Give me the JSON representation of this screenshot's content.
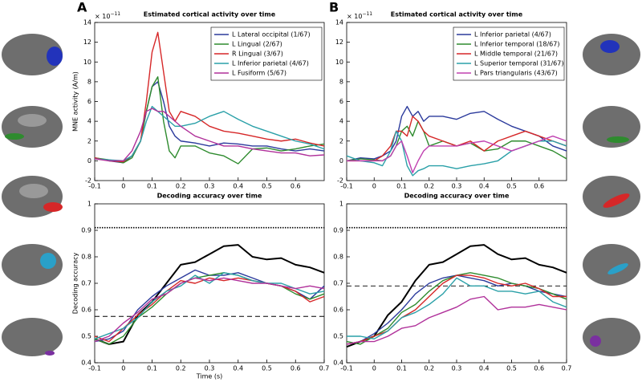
{
  "chart_data": [
    {
      "type": "line",
      "title": "Estimated cortical activity over time",
      "panel_label": "A",
      "offset_label": "× 10",
      "offset_exponent": "−11",
      "ylabel": "MNE activity (A/m)",
      "xlim": [
        -0.1,
        0.7
      ],
      "xticks": [
        -0.1,
        0,
        0.1,
        0.2,
        0.3,
        0.4,
        0.5,
        0.6
      ],
      "ylim": [
        -2,
        14
      ],
      "yticks": [
        -2,
        0,
        2,
        4,
        6,
        8,
        10,
        12,
        14
      ],
      "legend": "upper right",
      "x": [
        -0.1,
        -0.05,
        0,
        0.03,
        0.06,
        0.08,
        0.1,
        0.12,
        0.14,
        0.16,
        0.18,
        0.2,
        0.25,
        0.3,
        0.35,
        0.4,
        0.45,
        0.5,
        0.55,
        0.6,
        0.65,
        0.7
      ],
      "series": [
        {
          "name": "L Lateral occipital (1/67)",
          "color": "#2b3a9c",
          "values": [
            0.3,
            0,
            -0.2,
            0.5,
            2,
            5,
            7.5,
            8,
            6,
            3.5,
            2.5,
            2,
            1.8,
            1.5,
            1.8,
            1.7,
            1.5,
            1.5,
            1.2,
            1,
            1.2,
            1
          ]
        },
        {
          "name": "L Lingual (2/67)",
          "color": "#2e8b2e",
          "values": [
            0.3,
            0.1,
            -0.2,
            0.3,
            2,
            5,
            7.5,
            8.5,
            4,
            1,
            0.3,
            1.5,
            1.5,
            0.8,
            0.5,
            -0.3,
            1.2,
            1.3,
            1,
            1.2,
            1.5,
            1.7
          ]
        },
        {
          "name": "R Lingual (3/67)",
          "color": "#d62728",
          "values": [
            0.3,
            0,
            -0.1,
            0.5,
            2,
            6,
            11,
            13,
            9,
            5,
            4,
            5,
            4.5,
            3.5,
            3,
            2.8,
            2.5,
            2.2,
            2,
            2.2,
            1.8,
            1.5
          ]
        },
        {
          "name": "L Inferior parietal (4/67)",
          "color": "#2aa0a8",
          "values": [
            0.2,
            0.1,
            0,
            0.5,
            2,
            4,
            5.5,
            5,
            4.5,
            4,
            3.5,
            3.5,
            3.8,
            4.5,
            5,
            4.2,
            3.5,
            3,
            2.5,
            2,
            1.7,
            1.2
          ]
        },
        {
          "name": "L Fusiform (5/67)",
          "color": "#b0309a",
          "values": [
            0.2,
            0,
            0,
            1,
            3,
            5,
            5.3,
            5,
            5,
            4.5,
            4,
            3.5,
            2.5,
            2,
            1.5,
            1.5,
            1.2,
            1,
            0.8,
            0.8,
            0.5,
            0.6
          ]
        }
      ]
    },
    {
      "type": "line",
      "title": "Estimated cortical activity over time",
      "panel_label": "B",
      "offset_label": "× 10",
      "offset_exponent": "−11",
      "xlim": [
        -0.1,
        0.7
      ],
      "xticks": [
        -0.1,
        0,
        0.1,
        0.2,
        0.3,
        0.4,
        0.5,
        0.6
      ],
      "ylim": [
        -2,
        14
      ],
      "yticks": [
        -2,
        0,
        2,
        4,
        6,
        8,
        10,
        12,
        14
      ],
      "legend": "upper right",
      "x": [
        -0.1,
        -0.05,
        0,
        0.03,
        0.06,
        0.08,
        0.1,
        0.12,
        0.14,
        0.16,
        0.18,
        0.2,
        0.25,
        0.3,
        0.35,
        0.4,
        0.45,
        0.5,
        0.55,
        0.6,
        0.65,
        0.7
      ],
      "series": [
        {
          "name": "L Inferior parietal (4/67)",
          "color": "#2b3a9c",
          "values": [
            0,
            0.3,
            0.2,
            0.5,
            1,
            2,
            4.5,
            5.5,
            4.5,
            5,
            4,
            4.5,
            4.5,
            4.2,
            4.8,
            5,
            4.2,
            3.5,
            3,
            2.5,
            1.5,
            1
          ]
        },
        {
          "name": "L Inferior temporal (18/67)",
          "color": "#2e8b2e",
          "values": [
            0,
            0.2,
            0.1,
            0,
            0.5,
            1.5,
            3,
            3.5,
            2.5,
            4,
            3,
            1.5,
            2,
            1.5,
            1.8,
            1,
            1.2,
            2,
            2,
            1.5,
            1,
            0.2
          ]
        },
        {
          "name": "L Middle temporal (21/67)",
          "color": "#d62728",
          "values": [
            0,
            0,
            0,
            0.5,
            1.5,
            3,
            3,
            2.5,
            4.5,
            4,
            3,
            2.5,
            2,
            1.5,
            2,
            1,
            2,
            2.5,
            3,
            2.5,
            2,
            1.5
          ]
        },
        {
          "name": "L Superior temporal (31/67)",
          "color": "#2aa0a8",
          "values": [
            0.5,
            0,
            -0.2,
            -0.5,
            1,
            3,
            2,
            -0.5,
            -1.5,
            -1,
            -0.8,
            -0.5,
            -0.5,
            -0.8,
            -0.5,
            -0.3,
            0,
            1,
            1.5,
            2,
            2,
            1.5
          ]
        },
        {
          "name": "L Pars triangularis (43/67)",
          "color": "#c040b0",
          "values": [
            0,
            0,
            0,
            0,
            0.5,
            1.5,
            2,
            0.5,
            -1.2,
            0,
            1,
            1.5,
            1.5,
            1.5,
            1.8,
            2,
            1.5,
            1,
            1.5,
            2,
            2.5,
            2
          ]
        }
      ]
    },
    {
      "type": "line",
      "title": "Decoding accuracy over time",
      "ylabel": "Decoding accuracy",
      "xlabel": "Time (s)",
      "xlim": [
        -0.1,
        0.7
      ],
      "xticks": [
        -0.1,
        0,
        0.1,
        0.2,
        0.3,
        0.4,
        0.5,
        0.6,
        0.7
      ],
      "ylim": [
        0.4,
        1
      ],
      "yticks": [
        0.4,
        0.5,
        0.6,
        0.7,
        0.8,
        0.9,
        1
      ],
      "reference_lines": [
        {
          "value": 0.91,
          "style": "dotted"
        },
        {
          "value": 0.575,
          "style": "dashed"
        }
      ],
      "x": [
        -0.1,
        -0.05,
        0,
        0.05,
        0.1,
        0.15,
        0.2,
        0.25,
        0.3,
        0.35,
        0.4,
        0.45,
        0.5,
        0.55,
        0.6,
        0.65,
        0.7
      ],
      "series": [
        {
          "color": "#000000",
          "values": [
            0.49,
            0.47,
            0.48,
            0.58,
            0.63,
            0.7,
            0.77,
            0.78,
            0.81,
            0.84,
            0.845,
            0.8,
            0.79,
            0.795,
            0.77,
            0.76,
            0.74
          ]
        },
        {
          "color": "#2b3a9c",
          "values": [
            0.48,
            0.49,
            0.52,
            0.6,
            0.65,
            0.69,
            0.72,
            0.75,
            0.73,
            0.73,
            0.74,
            0.72,
            0.7,
            0.69,
            0.67,
            0.64,
            0.69
          ]
        },
        {
          "color": "#2e8b2e",
          "values": [
            0.49,
            0.47,
            0.5,
            0.57,
            0.61,
            0.66,
            0.7,
            0.72,
            0.73,
            0.74,
            0.73,
            0.71,
            0.7,
            0.69,
            0.66,
            0.64,
            0.66
          ]
        },
        {
          "color": "#d62728",
          "values": [
            0.5,
            0.48,
            0.53,
            0.58,
            0.62,
            0.67,
            0.71,
            0.7,
            0.72,
            0.71,
            0.72,
            0.71,
            0.7,
            0.69,
            0.67,
            0.63,
            0.65
          ]
        },
        {
          "color": "#2aa0a8",
          "values": [
            0.49,
            0.51,
            0.53,
            0.57,
            0.63,
            0.67,
            0.69,
            0.73,
            0.7,
            0.74,
            0.73,
            0.71,
            0.7,
            0.7,
            0.68,
            0.66,
            0.67
          ]
        },
        {
          "color": "#b0309a",
          "values": [
            0.48,
            0.5,
            0.55,
            0.59,
            0.64,
            0.66,
            0.7,
            0.72,
            0.71,
            0.72,
            0.71,
            0.7,
            0.7,
            0.69,
            0.68,
            0.69,
            0.68
          ]
        }
      ]
    },
    {
      "type": "line",
      "title": "Decoding accuracy over time",
      "xlim": [
        -0.1,
        0.7
      ],
      "xticks": [
        -0.1,
        0,
        0.1,
        0.2,
        0.3,
        0.4,
        0.5,
        0.6,
        0.7
      ],
      "ylim": [
        0.4,
        1
      ],
      "yticks": [
        0.4,
        0.5,
        0.6,
        0.7,
        0.8,
        0.9,
        1
      ],
      "reference_lines": [
        {
          "value": 0.91,
          "style": "dotted"
        },
        {
          "value": 0.69,
          "style": "dashed"
        }
      ],
      "x": [
        -0.1,
        -0.05,
        0,
        0.05,
        0.1,
        0.15,
        0.2,
        0.25,
        0.3,
        0.35,
        0.4,
        0.45,
        0.5,
        0.55,
        0.6,
        0.65,
        0.7
      ],
      "series": [
        {
          "color": "#000000",
          "values": [
            0.46,
            0.48,
            0.5,
            0.58,
            0.63,
            0.71,
            0.77,
            0.78,
            0.81,
            0.84,
            0.845,
            0.81,
            0.79,
            0.795,
            0.77,
            0.76,
            0.74
          ]
        },
        {
          "color": "#2b3a9c",
          "values": [
            0.47,
            0.48,
            0.51,
            0.55,
            0.6,
            0.66,
            0.7,
            0.72,
            0.73,
            0.72,
            0.71,
            0.69,
            0.7,
            0.69,
            0.67,
            0.66,
            0.65
          ]
        },
        {
          "color": "#2e8b2e",
          "values": [
            0.48,
            0.47,
            0.5,
            0.53,
            0.59,
            0.62,
            0.67,
            0.71,
            0.73,
            0.74,
            0.73,
            0.72,
            0.7,
            0.69,
            0.68,
            0.66,
            0.64
          ]
        },
        {
          "color": "#d62728",
          "values": [
            0.47,
            0.48,
            0.5,
            0.52,
            0.57,
            0.6,
            0.65,
            0.7,
            0.73,
            0.73,
            0.72,
            0.7,
            0.69,
            0.7,
            0.68,
            0.65,
            0.65
          ]
        },
        {
          "color": "#2aa0a8",
          "values": [
            0.5,
            0.5,
            0.49,
            0.52,
            0.57,
            0.59,
            0.62,
            0.66,
            0.72,
            0.69,
            0.69,
            0.67,
            0.67,
            0.66,
            0.67,
            0.63,
            0.61
          ]
        },
        {
          "color": "#b0309a",
          "values": [
            0.47,
            0.48,
            0.48,
            0.5,
            0.53,
            0.54,
            0.57,
            0.59,
            0.61,
            0.64,
            0.65,
            0.6,
            0.61,
            0.61,
            0.62,
            0.61,
            0.6
          ]
        }
      ]
    }
  ]
}
